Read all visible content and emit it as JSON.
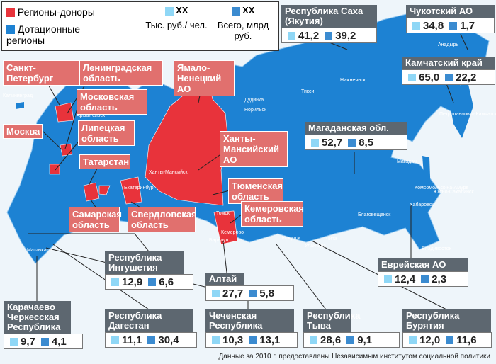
{
  "legend": {
    "donor": "Регионы-доноры",
    "subsidized": "Дотационные регионы",
    "per_capita": {
      "symbol": "XX",
      "label": "Тыс. руб./ чел."
    },
    "total": {
      "symbol": "XX",
      "label": "Всего, млрд руб."
    }
  },
  "donor_labels": [
    "Санкт- Петербург",
    "Ленинградская область",
    "Московская область",
    "Москва",
    "Липецкая область",
    "Татарстан",
    "Самарская область",
    "Свердловская область",
    "Ямало- Ненецкий АО",
    "Ханты- Мансийский АО",
    "Тюменская область",
    "Кемеровская область"
  ],
  "callouts": [
    {
      "name": "Республика Саха (Якутия)",
      "per_capita": "41,2",
      "total": "39,2"
    },
    {
      "name": "Чукотский АО",
      "per_capita": "34,8",
      "total": "1,7"
    },
    {
      "name": "Камчатский край",
      "per_capita": "65,0",
      "total": "22,2"
    },
    {
      "name": "Магаданская обл.",
      "per_capita": "52,7",
      "total": "8,5"
    },
    {
      "name": "Республика Ингушетия",
      "per_capita": "12,9",
      "total": "6,6"
    },
    {
      "name": "Алтай",
      "per_capita": "27,7",
      "total": "5,8"
    },
    {
      "name": "Еврейская АО",
      "per_capita": "12,4",
      "total": "2,3"
    },
    {
      "name": "Карачаево Черкесская Республика",
      "per_capita": "9,7",
      "total": "4,1"
    },
    {
      "name": "Республика Дагестан",
      "per_capita": "11,1",
      "total": "30,4"
    },
    {
      "name": "Чеченская Республика",
      "per_capita": "10,3",
      "total": "13,1"
    },
    {
      "name": "Республика Тыва",
      "per_capita": "28,6",
      "total": "9,1"
    },
    {
      "name": "Республика Бурятия",
      "per_capita": "12,0",
      "total": "11,6"
    }
  ],
  "cities": [
    "Калининград",
    "Архангельск",
    "Дудинка",
    "Тикси",
    "Нижнеянск",
    "Якутск",
    "Мирный",
    "Магадан",
    "Норильск",
    "Ханты-Мансийск",
    "Екатеринбург",
    "Томск",
    "Барнаул",
    "Кемерово",
    "Иркутск",
    "Улан-Удэ",
    "Чита",
    "Благовещенск",
    "Хабаровск",
    "Владивосток",
    "Комсомольск-на-Амуре",
    "Южно-Сахалинск",
    "Петропавловск-Камчатский",
    "Анадырь",
    "Махачкала",
    "Тура"
  ],
  "footnote": "Данные за 2010 г. предоставлены Независимым институтом социальной политики"
}
